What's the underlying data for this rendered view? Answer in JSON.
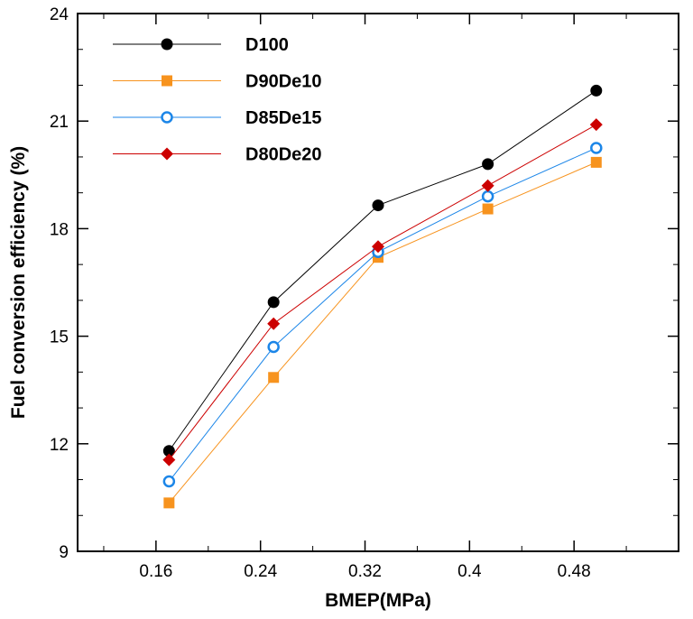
{
  "chart_data": {
    "type": "line",
    "title": "",
    "xlabel": "BMEP(MPa)",
    "ylabel": "Fuel conversion efficiency (%)",
    "xlim": [
      0.1,
      0.56
    ],
    "ylim": [
      9,
      24
    ],
    "xticks": [
      0.16,
      0.24,
      0.32,
      0.4,
      0.48
    ],
    "xtick_labels": [
      "0.16",
      "0.24",
      "0.32",
      "0.4",
      "0.48"
    ],
    "yticks": [
      9,
      12,
      15,
      18,
      21,
      24
    ],
    "ytick_labels": [
      "9",
      "12",
      "15",
      "18",
      "21",
      "24"
    ],
    "grid": false,
    "legend_position": "top-left",
    "x": [
      0.17,
      0.25,
      0.33,
      0.414,
      0.497
    ],
    "series": [
      {
        "name": "D100",
        "color": "#000000",
        "marker": "circle-filled",
        "values": [
          11.8,
          15.95,
          18.65,
          19.8,
          21.85
        ]
      },
      {
        "name": "D90De10",
        "color": "#f7931e",
        "marker": "square",
        "values": [
          10.35,
          13.85,
          17.2,
          18.55,
          19.85
        ]
      },
      {
        "name": "D85De15",
        "color": "#1c86e8",
        "marker": "circle-open",
        "values": [
          10.95,
          14.7,
          17.35,
          18.9,
          20.25
        ]
      },
      {
        "name": "D80De20",
        "color": "#cc0000",
        "marker": "diamond",
        "values": [
          11.55,
          15.35,
          17.5,
          19.2,
          20.9
        ]
      }
    ]
  }
}
